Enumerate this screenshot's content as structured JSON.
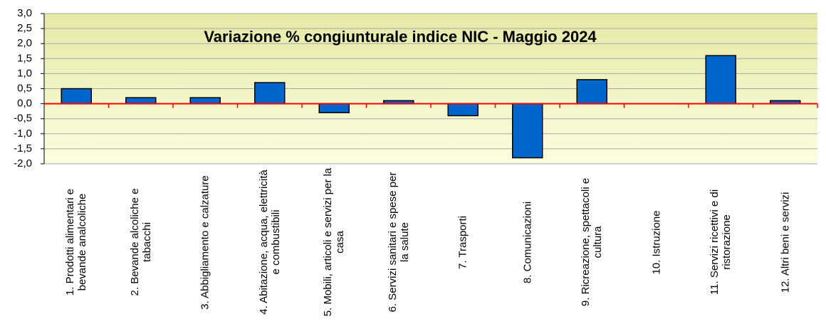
{
  "chart_data": {
    "type": "bar",
    "title": "Variazione % congiunturale indice NIC -  Maggio 2024",
    "categories": [
      "1. Prodotti alimentari e bevande analcoliche",
      "2. Bevande alcoliche e tabacchi",
      "3. Abbigliamento e calzature",
      "4. Abitazione, acqua, elettricità e combustibili",
      "5. Mobili, articoli e servizi per la casa",
      "6. Servizi sanitari e spese per la salute",
      "7. Trasporti",
      "8. Comunicazioni",
      "9. Ricreazione, spettacoli e cultura",
      "10. Istruzione",
      "11. Servizi ricettivi e di ristorazione",
      "12. Altri beni e servizi"
    ],
    "values": [
      0.5,
      0.2,
      0.2,
      0.7,
      -0.3,
      0.1,
      -0.4,
      -1.8,
      0.8,
      0.0,
      1.6,
      0.1
    ],
    "color": "#0066cc",
    "ylim": [
      -2.0,
      3.0
    ],
    "yticks": [
      {
        "value": -2.0,
        "label": "-2,0"
      },
      {
        "value": -1.5,
        "label": "-1,5"
      },
      {
        "value": -1.0,
        "label": "-1,0"
      },
      {
        "value": -0.5,
        "label": "-0,5"
      },
      {
        "value": 0.0,
        "label": "0,0"
      },
      {
        "value": 0.5,
        "label": "0,5"
      },
      {
        "value": 1.0,
        "label": "1,0"
      },
      {
        "value": 1.5,
        "label": "1,5"
      },
      {
        "value": 2.0,
        "label": "2,0"
      },
      {
        "value": 2.5,
        "label": "2,5"
      },
      {
        "value": 3.0,
        "label": "3,0"
      }
    ],
    "grid": true
  }
}
